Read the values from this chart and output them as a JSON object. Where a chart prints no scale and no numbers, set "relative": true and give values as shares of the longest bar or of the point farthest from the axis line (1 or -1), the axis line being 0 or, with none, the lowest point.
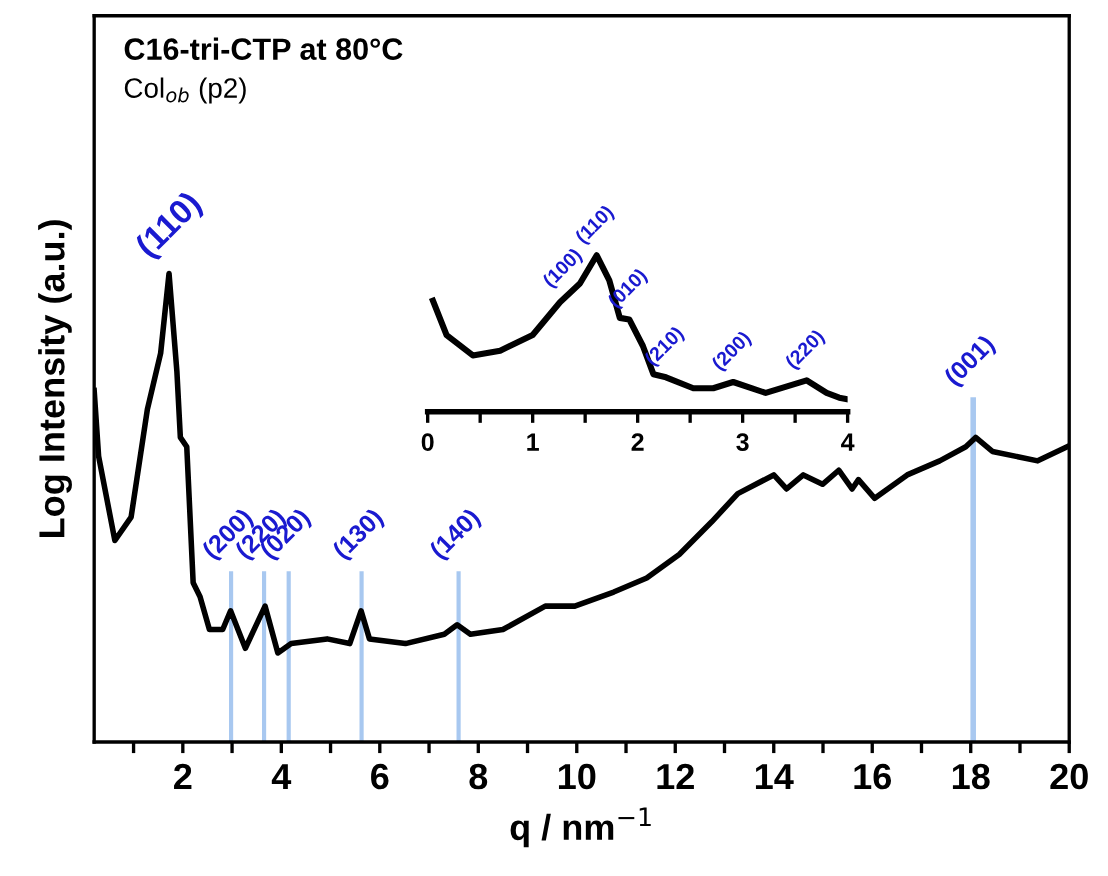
{
  "chart_data": [
    {
      "type": "line",
      "relative": true,
      "title": "C16-tri-CTP at 80°C",
      "subtitle": "Col$_{ob}$ (p2)",
      "xlabel": "q / nm$^{−1}$",
      "ylabel": "Log Intensity (a.u.)",
      "xlim": [
        0.2,
        20
      ],
      "xticks": [
        {
          "value": 1,
          "label": null
        },
        2,
        {
          "value": 3,
          "label": null
        },
        4,
        {
          "value": 5,
          "label": null
        },
        6,
        {
          "value": 7,
          "label": null
        },
        8,
        {
          "value": 9,
          "label": null
        },
        10,
        {
          "value": 11,
          "label": null
        },
        12,
        {
          "value": 13,
          "label": null
        },
        14,
        {
          "value": 15,
          "label": null
        },
        16,
        {
          "value": 17,
          "label": null
        },
        18,
        {
          "value": 19,
          "label": null
        },
        20
      ],
      "tick_labels": "x",
      "grid": false,
      "legend": false,
      "marker": "none",
      "line_style": "solid",
      "series": [
        {
          "color": "#000000",
          "x": [
            0.2,
            0.29,
            0.62,
            0.95,
            1.28,
            1.55,
            1.72,
            1.88,
            1.95,
            2.08,
            2.21,
            2.35,
            2.54,
            2.81,
            2.97,
            3.27,
            3.67,
            3.93,
            4.2,
            4.93,
            5.39,
            5.62,
            5.79,
            6.52,
            7.31,
            7.57,
            7.84,
            8.5,
            9.36,
            9.96,
            10.75,
            11.42,
            12.08,
            12.74,
            13.27,
            14.0,
            14.26,
            14.6,
            14.99,
            15.32,
            15.59,
            15.72,
            16.05,
            16.71,
            17.37,
            17.9,
            18.1,
            18.44,
            19.36,
            19.96
          ],
          "values": [
            0.75,
            0.61,
            0.43,
            0.48,
            0.71,
            0.83,
            1.0,
            0.79,
            0.65,
            0.63,
            0.34,
            0.31,
            0.24,
            0.24,
            0.28,
            0.2,
            0.29,
            0.19,
            0.21,
            0.22,
            0.21,
            0.28,
            0.22,
            0.21,
            0.23,
            0.25,
            0.23,
            0.24,
            0.29,
            0.29,
            0.32,
            0.35,
            0.4,
            0.47,
            0.53,
            0.57,
            0.54,
            0.57,
            0.55,
            0.58,
            0.54,
            0.56,
            0.52,
            0.57,
            0.6,
            0.63,
            0.65,
            0.62,
            0.6,
            0.63
          ]
        }
      ],
      "ref_lines": [
        {
          "axis": "x",
          "value": 2.98,
          "color": "#a8c8f0"
        },
        {
          "axis": "x",
          "value": 3.65,
          "color": "#a8c8f0"
        },
        {
          "axis": "x",
          "value": 4.15,
          "color": "#a8c8f0"
        },
        {
          "axis": "x",
          "value": 5.63,
          "color": "#a8c8f0"
        },
        {
          "axis": "x",
          "value": 7.6,
          "color": "#a8c8f0"
        },
        {
          "axis": "x",
          "value": 18.05,
          "color": "#a8c8f0"
        }
      ],
      "annotations": [
        {
          "text": "(110)",
          "x": 1.72,
          "y": 1.0
        },
        {
          "text": "(200)",
          "x": 2.98,
          "y": 0.36
        },
        {
          "text": "(220)",
          "x": 3.65,
          "y": 0.36
        },
        {
          "text": "(020)",
          "x": 4.15,
          "y": 0.36
        },
        {
          "text": "(130)",
          "x": 5.63,
          "y": 0.36
        },
        {
          "text": "(140)",
          "x": 7.6,
          "y": 0.36
        },
        {
          "text": "(001)",
          "x": 18.05,
          "y": 0.73
        }
      ]
    },
    {
      "type": "line",
      "relative": true,
      "xlim": [
        0,
        4
      ],
      "xticks": [
        0,
        {
          "value": 0.5,
          "label": null
        },
        1,
        {
          "value": 1.5,
          "label": null
        },
        2,
        {
          "value": 2.5,
          "label": null
        },
        3,
        {
          "value": 3.5,
          "label": null
        },
        4
      ],
      "tick_labels": "x",
      "grid": false,
      "legend": false,
      "marker": "none",
      "line_style": "solid",
      "series": [
        {
          "color": "#000000",
          "x": [
            0.05,
            0.18,
            0.43,
            0.69,
            1.0,
            1.26,
            1.45,
            1.61,
            1.73,
            1.83,
            1.92,
            2.05,
            2.15,
            2.27,
            2.53,
            2.72,
            2.91,
            3.22,
            3.61,
            3.8,
            3.92,
            4.0
          ],
          "values": [
            0.71,
            0.49,
            0.36,
            0.39,
            0.49,
            0.7,
            0.82,
            1.0,
            0.84,
            0.6,
            0.59,
            0.42,
            0.24,
            0.22,
            0.15,
            0.15,
            0.19,
            0.12,
            0.2,
            0.12,
            0.09,
            0.08
          ]
        }
      ],
      "annotations": [
        {
          "text": "(100)",
          "x": 1.3,
          "y": 0.72
        },
        {
          "text": "(110)",
          "x": 1.61,
          "y": 1.0
        },
        {
          "text": "(010)",
          "x": 1.92,
          "y": 0.59
        },
        {
          "text": "(210)",
          "x": 2.27,
          "y": 0.22
        },
        {
          "text": "(200)",
          "x": 2.91,
          "y": 0.19
        },
        {
          "text": "(220)",
          "x": 3.61,
          "y": 0.2
        }
      ]
    }
  ]
}
